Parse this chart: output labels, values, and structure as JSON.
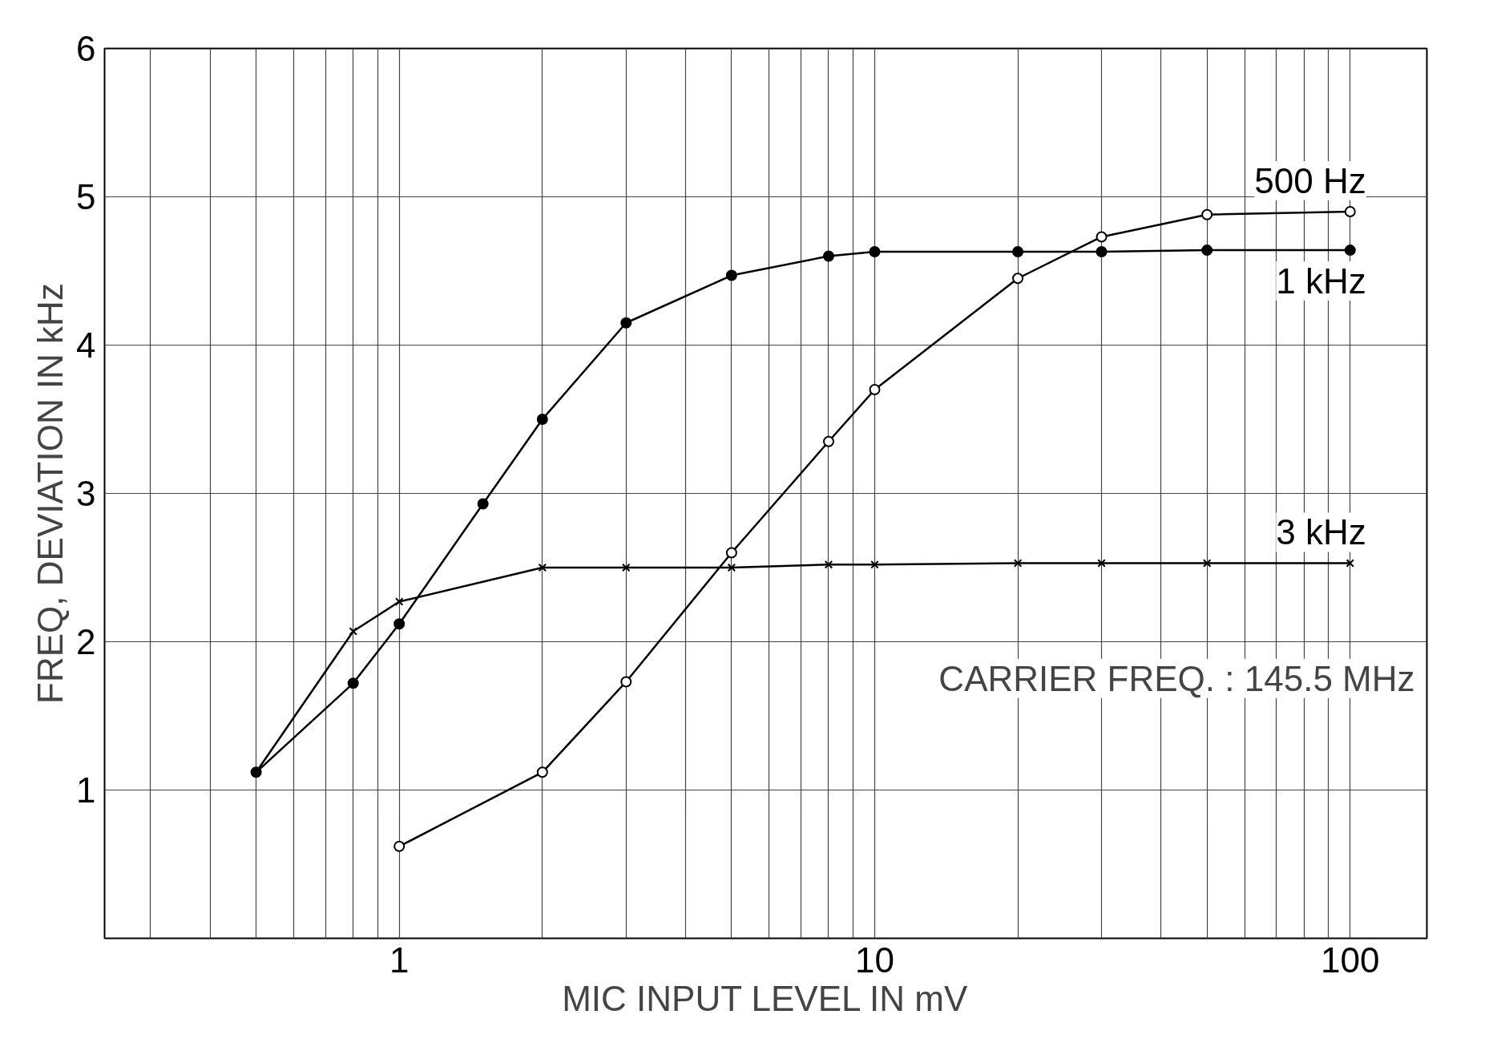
{
  "chart_data": {
    "type": "line",
    "xlabel": "MIC INPUT LEVEL IN mV",
    "ylabel": "FREQ, DEVIATION IN kHz",
    "log": "x",
    "grid": true,
    "line_style": "solid",
    "xlim": [
      0.24,
      145
    ],
    "ylim": [
      0,
      6
    ],
    "xticks": [
      {
        "value": 0.3,
        "label": null
      },
      {
        "value": 0.4,
        "label": null
      },
      {
        "value": 0.5,
        "label": null
      },
      {
        "value": 0.6,
        "label": null
      },
      {
        "value": 0.7,
        "label": null
      },
      {
        "value": 0.8,
        "label": null
      },
      {
        "value": 0.9,
        "label": null
      },
      1,
      {
        "value": 2,
        "label": null
      },
      {
        "value": 3,
        "label": null
      },
      {
        "value": 4,
        "label": null
      },
      {
        "value": 5,
        "label": null
      },
      {
        "value": 6,
        "label": null
      },
      {
        "value": 7,
        "label": null
      },
      {
        "value": 8,
        "label": null
      },
      {
        "value": 9,
        "label": null
      },
      10,
      {
        "value": 20,
        "label": null
      },
      {
        "value": 30,
        "label": null
      },
      {
        "value": 40,
        "label": null
      },
      {
        "value": 50,
        "label": null
      },
      {
        "value": 60,
        "label": null
      },
      {
        "value": 70,
        "label": null
      },
      {
        "value": 80,
        "label": null
      },
      {
        "value": 90,
        "label": null
      },
      100
    ],
    "yticks": [
      1,
      2,
      3,
      4,
      5,
      6
    ],
    "series": [
      {
        "name": "500 Hz",
        "color": "#000000",
        "marker": "circle",
        "x": [
          1,
          2,
          3,
          5,
          8,
          10,
          20,
          30,
          50,
          100
        ],
        "values": [
          0.62,
          1.12,
          1.73,
          2.6,
          3.35,
          3.7,
          4.45,
          4.73,
          4.88,
          4.9
        ]
      },
      {
        "name": "1 kHz",
        "color": "#000000",
        "marker": "circle",
        "x": [
          0.5,
          0.8,
          1,
          1.5,
          2,
          3,
          5,
          8,
          10,
          20,
          30,
          50,
          100
        ],
        "values": [
          1.12,
          1.72,
          2.12,
          2.93,
          3.5,
          4.15,
          4.47,
          4.6,
          4.63,
          4.63,
          4.63,
          4.64,
          4.64
        ]
      },
      {
        "name": "3 kHz",
        "color": "#000000",
        "marker": "cross",
        "x": [
          0.5,
          0.8,
          1,
          2,
          3,
          5,
          8,
          10,
          20,
          30,
          50,
          100
        ],
        "values": [
          1.12,
          2.07,
          2.27,
          2.5,
          2.5,
          2.5,
          2.52,
          2.52,
          2.53,
          2.53,
          2.53,
          2.53
        ]
      }
    ],
    "annotations": [
      "CARRIER FREQ. : 145.5 MHz"
    ]
  }
}
